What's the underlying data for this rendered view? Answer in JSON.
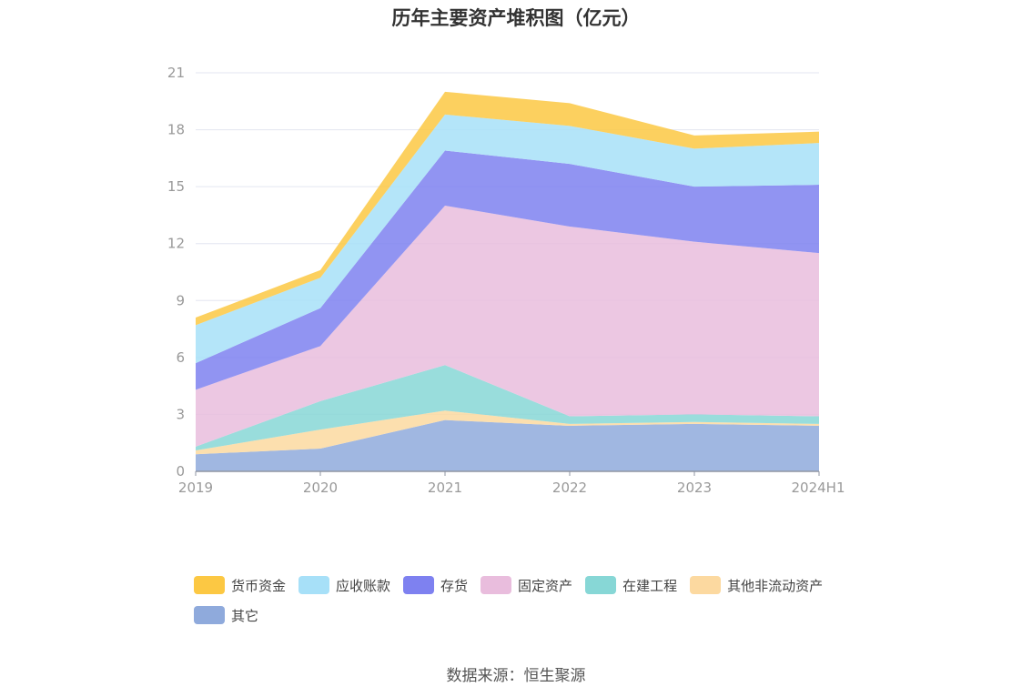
{
  "title": "历年主要资产堆积图（亿元）",
  "source": "数据来源：恒生聚源",
  "chart_data": {
    "type": "area",
    "stacked": true,
    "title": "历年主要资产堆积图（亿元）",
    "x": [
      "2019",
      "2020",
      "2021",
      "2022",
      "2023",
      "2024H1"
    ],
    "ylim": [
      0,
      21
    ],
    "yticks": [
      0,
      3,
      6,
      9,
      12,
      15,
      18,
      21
    ],
    "grid": true,
    "legend_position": "bottom",
    "series": [
      {
        "name": "其它",
        "color": "#8faadc",
        "values": [
          0.9,
          1.2,
          2.7,
          2.4,
          2.5,
          2.4
        ]
      },
      {
        "name": "其他非流动资产",
        "color": "#fcd9a0",
        "values": [
          0.2,
          1.0,
          0.5,
          0.1,
          0.1,
          0.1
        ]
      },
      {
        "name": "在建工程",
        "color": "#87d7d6",
        "values": [
          0.2,
          1.5,
          2.4,
          0.4,
          0.4,
          0.4
        ]
      },
      {
        "name": "固定资产",
        "color": "#e9bddd",
        "values": [
          3.0,
          2.9,
          8.4,
          10.0,
          9.1,
          8.6
        ]
      },
      {
        "name": "存货",
        "color": "#7e81f0",
        "values": [
          1.4,
          2.0,
          2.9,
          3.3,
          2.9,
          3.6
        ]
      },
      {
        "name": "应收账款",
        "color": "#a7e0f8",
        "values": [
          2.0,
          1.6,
          1.9,
          2.0,
          2.0,
          2.2
        ]
      },
      {
        "name": "货币资金",
        "color": "#fcc843",
        "values": [
          0.4,
          0.4,
          1.2,
          1.2,
          0.7,
          0.6
        ]
      }
    ],
    "legend_order": [
      "货币资金",
      "应收账款",
      "存货",
      "固定资产",
      "在建工程",
      "其他非流动资产",
      "其它"
    ]
  }
}
